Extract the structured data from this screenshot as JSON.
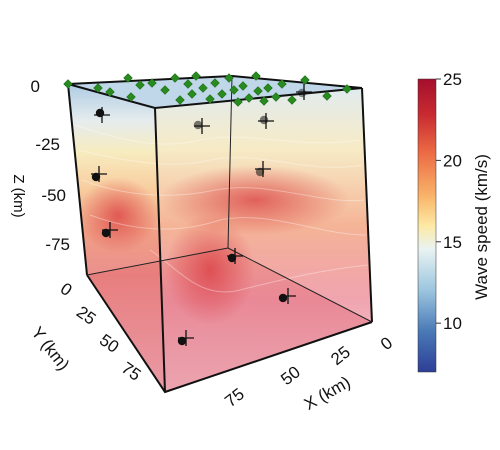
{
  "chart_data": {
    "type": "3d-volume-scatter",
    "axes": {
      "z": {
        "label": "Z (km)",
        "ticks": [
          "0",
          "-25",
          "-50",
          "-75"
        ]
      },
      "y": {
        "label": "Y (km)",
        "ticks": [
          "0",
          "25",
          "50",
          "75"
        ]
      },
      "x": {
        "label": "X (km)",
        "ticks": [
          "0",
          "25",
          "50",
          "75"
        ]
      }
    },
    "colorbar": {
      "label": "Wave speed (km/s)",
      "ticks": [
        "25",
        "20",
        "15",
        "10"
      ],
      "range": [
        7,
        25
      ],
      "colors": [
        "#2d3e97",
        "#4a7ab7",
        "#9cc6df",
        "#e9f3f2",
        "#fde9a4",
        "#f9b46a",
        "#ec6a44",
        "#c72a31",
        "#a50f2c"
      ]
    },
    "markers": {
      "surface_stations": {
        "shape": "diamond",
        "color": "#2a8a22",
        "count": 32
      },
      "sources": {
        "shape": "circle",
        "color": "#111111",
        "count": 10
      },
      "crosses": {
        "shape": "plus",
        "color": "#111111",
        "count": 10
      }
    }
  }
}
